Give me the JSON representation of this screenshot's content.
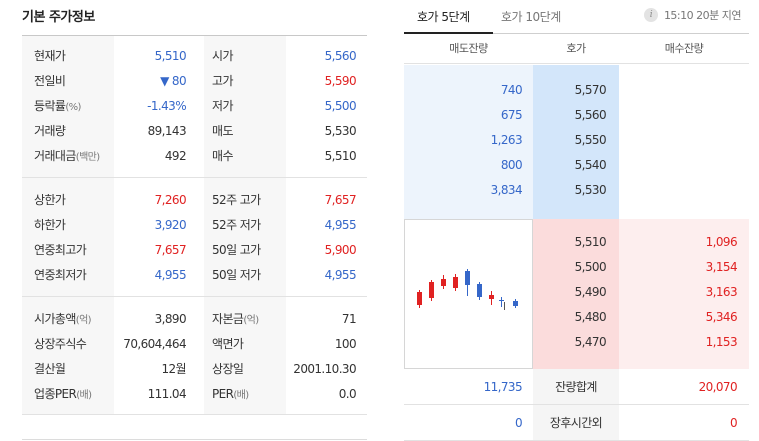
{
  "left": {
    "title": "기본 주가정보",
    "groups": [
      [
        {
          "l1": "현재가",
          "u1": "",
          "v1": "5,510",
          "c1": "blue",
          "l2": "시가",
          "u2": "",
          "v2": "5,560",
          "c2": "blue"
        },
        {
          "l1": "전일비",
          "u1": "",
          "v1": "▼ 80",
          "c1": "blue",
          "l2": "고가",
          "u2": "",
          "v2": "5,590",
          "c2": "red"
        },
        {
          "l1": "등락률",
          "u1": "(%)",
          "v1": "-1.43%",
          "c1": "blue",
          "l2": "저가",
          "u2": "",
          "v2": "5,500",
          "c2": "blue"
        },
        {
          "l1": "거래량",
          "u1": "",
          "v1": "89,143",
          "c1": "dark",
          "l2": "매도",
          "u2": "",
          "v2": "5,530",
          "c2": "dark"
        },
        {
          "l1": "거래대금",
          "u1": "(백만)",
          "v1": "492",
          "c1": "dark",
          "l2": "매수",
          "u2": "",
          "v2": "5,510",
          "c2": "dark"
        }
      ],
      [
        {
          "l1": "상한가",
          "u1": "",
          "v1": "7,260",
          "c1": "red",
          "l2": "52주 고가",
          "u2": "",
          "v2": "7,657",
          "c2": "red"
        },
        {
          "l1": "하한가",
          "u1": "",
          "v1": "3,920",
          "c1": "blue",
          "l2": "52주 저가",
          "u2": "",
          "v2": "4,955",
          "c2": "blue"
        },
        {
          "l1": "연중최고가",
          "u1": "",
          "v1": "7,657",
          "c1": "red",
          "l2": "50일 고가",
          "u2": "",
          "v2": "5,900",
          "c2": "red"
        },
        {
          "l1": "연중최저가",
          "u1": "",
          "v1": "4,955",
          "c1": "blue",
          "l2": "50일 저가",
          "u2": "",
          "v2": "4,955",
          "c2": "blue"
        }
      ],
      [
        {
          "l1": "시가총액",
          "u1": "(억)",
          "v1": "3,890",
          "c1": "dark",
          "l2": "자본금",
          "u2": "(억)",
          "v2": "71",
          "c2": "dark"
        },
        {
          "l1": "상장주식수",
          "u1": "",
          "v1": "70,604,464",
          "c1": "dark",
          "l2": "액면가",
          "u2": "",
          "v2": "100",
          "c2": "dark"
        },
        {
          "l1": "결산월",
          "u1": "",
          "v1": "12월",
          "c1": "dark",
          "l2": "상장일",
          "u2": "",
          "v2": "2001.10.30",
          "c2": "dark"
        },
        {
          "l1": "업종PER",
          "u1": "(배)",
          "v1": "111.04",
          "c1": "dark",
          "l2": "PER",
          "u2": "(배)",
          "v2": "0.0",
          "c2": "dark"
        }
      ]
    ]
  },
  "right": {
    "tabs": [
      "호가 5단계",
      "호가 10단계"
    ],
    "delay_text": "15:10 20분 지연",
    "info_icon": "info-icon",
    "headers": [
      "매도잔량",
      "호가",
      "매수잔량"
    ],
    "asks": [
      {
        "qty": "740",
        "price": "5,570"
      },
      {
        "qty": "675",
        "price": "5,560"
      },
      {
        "qty": "1,263",
        "price": "5,550"
      },
      {
        "qty": "800",
        "price": "5,540"
      },
      {
        "qty": "3,834",
        "price": "5,530"
      }
    ],
    "bids": [
      {
        "price": "5,510",
        "qty": "1,096"
      },
      {
        "price": "5,500",
        "qty": "3,154"
      },
      {
        "price": "5,490",
        "qty": "3,163"
      },
      {
        "price": "5,480",
        "qty": "5,346"
      },
      {
        "price": "5,470",
        "qty": "1,153"
      }
    ],
    "summary": [
      {
        "left": "11,735",
        "label": "잔량합계",
        "right": "20,070"
      },
      {
        "left": "0",
        "label": "장후시간외",
        "right": "0"
      }
    ],
    "colors": {
      "up": "#e02222",
      "down": "#3567c9"
    }
  }
}
